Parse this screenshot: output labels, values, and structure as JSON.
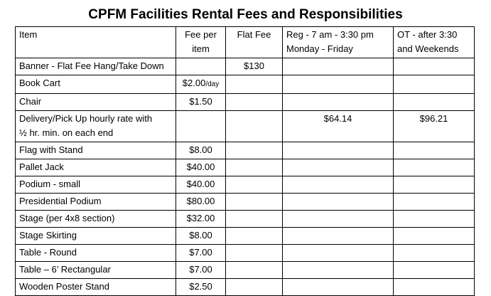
{
  "title": "CPFM Facilities Rental Fees and Responsibilities",
  "headers": {
    "item": "Item",
    "fee_line1": "Fee per",
    "fee_line2": "item",
    "flat": "Flat Fee",
    "reg_line1": "Reg - 7 am - 3:30 pm",
    "reg_line2": "Monday - Friday",
    "ot_line1": "OT - after 3:30",
    "ot_line2": "and Weekends"
  },
  "rows": [
    {
      "item": "Banner - Flat Fee Hang/Take Down",
      "fee": "",
      "flat": "$130",
      "reg": "",
      "ot": ""
    },
    {
      "item": "Book Cart",
      "fee": "$2.00",
      "fee_suffix": "/day",
      "flat": "",
      "reg": "",
      "ot": ""
    },
    {
      "item": "Chair",
      "fee": "$1.50",
      "flat": "",
      "reg": "",
      "ot": ""
    },
    {
      "item": "Delivery/Pick Up hourly rate with",
      "item_line2": "½ hr. min. on each end",
      "fee": "",
      "flat": "",
      "reg": "$64.14",
      "ot": "$96.21"
    },
    {
      "item": "Flag with Stand",
      "fee": "$8.00",
      "flat": "",
      "reg": "",
      "ot": ""
    },
    {
      "item": "Pallet Jack",
      "fee": "$40.00",
      "flat": "",
      "reg": "",
      "ot": ""
    },
    {
      "item": "Podium - small",
      "fee": "$40.00",
      "flat": "",
      "reg": "",
      "ot": ""
    },
    {
      "item": "Presidential Podium",
      "fee": "$80.00",
      "flat": "",
      "reg": "",
      "ot": ""
    },
    {
      "item": "Stage (per 4x8 section)",
      "fee": "$32.00",
      "flat": "",
      "reg": "",
      "ot": ""
    },
    {
      "item": "Stage Skirting",
      "fee": "$8.00",
      "flat": "",
      "reg": "",
      "ot": ""
    },
    {
      "item": "Table - Round",
      "fee": "$7.00",
      "flat": "",
      "reg": "",
      "ot": ""
    },
    {
      "item": "Table – 6’ Rectangular",
      "fee": "$7.00",
      "flat": "",
      "reg": "",
      "ot": ""
    },
    {
      "item": "Wooden Poster Stand",
      "fee": "$2.50",
      "flat": "",
      "reg": "",
      "ot": ""
    }
  ]
}
